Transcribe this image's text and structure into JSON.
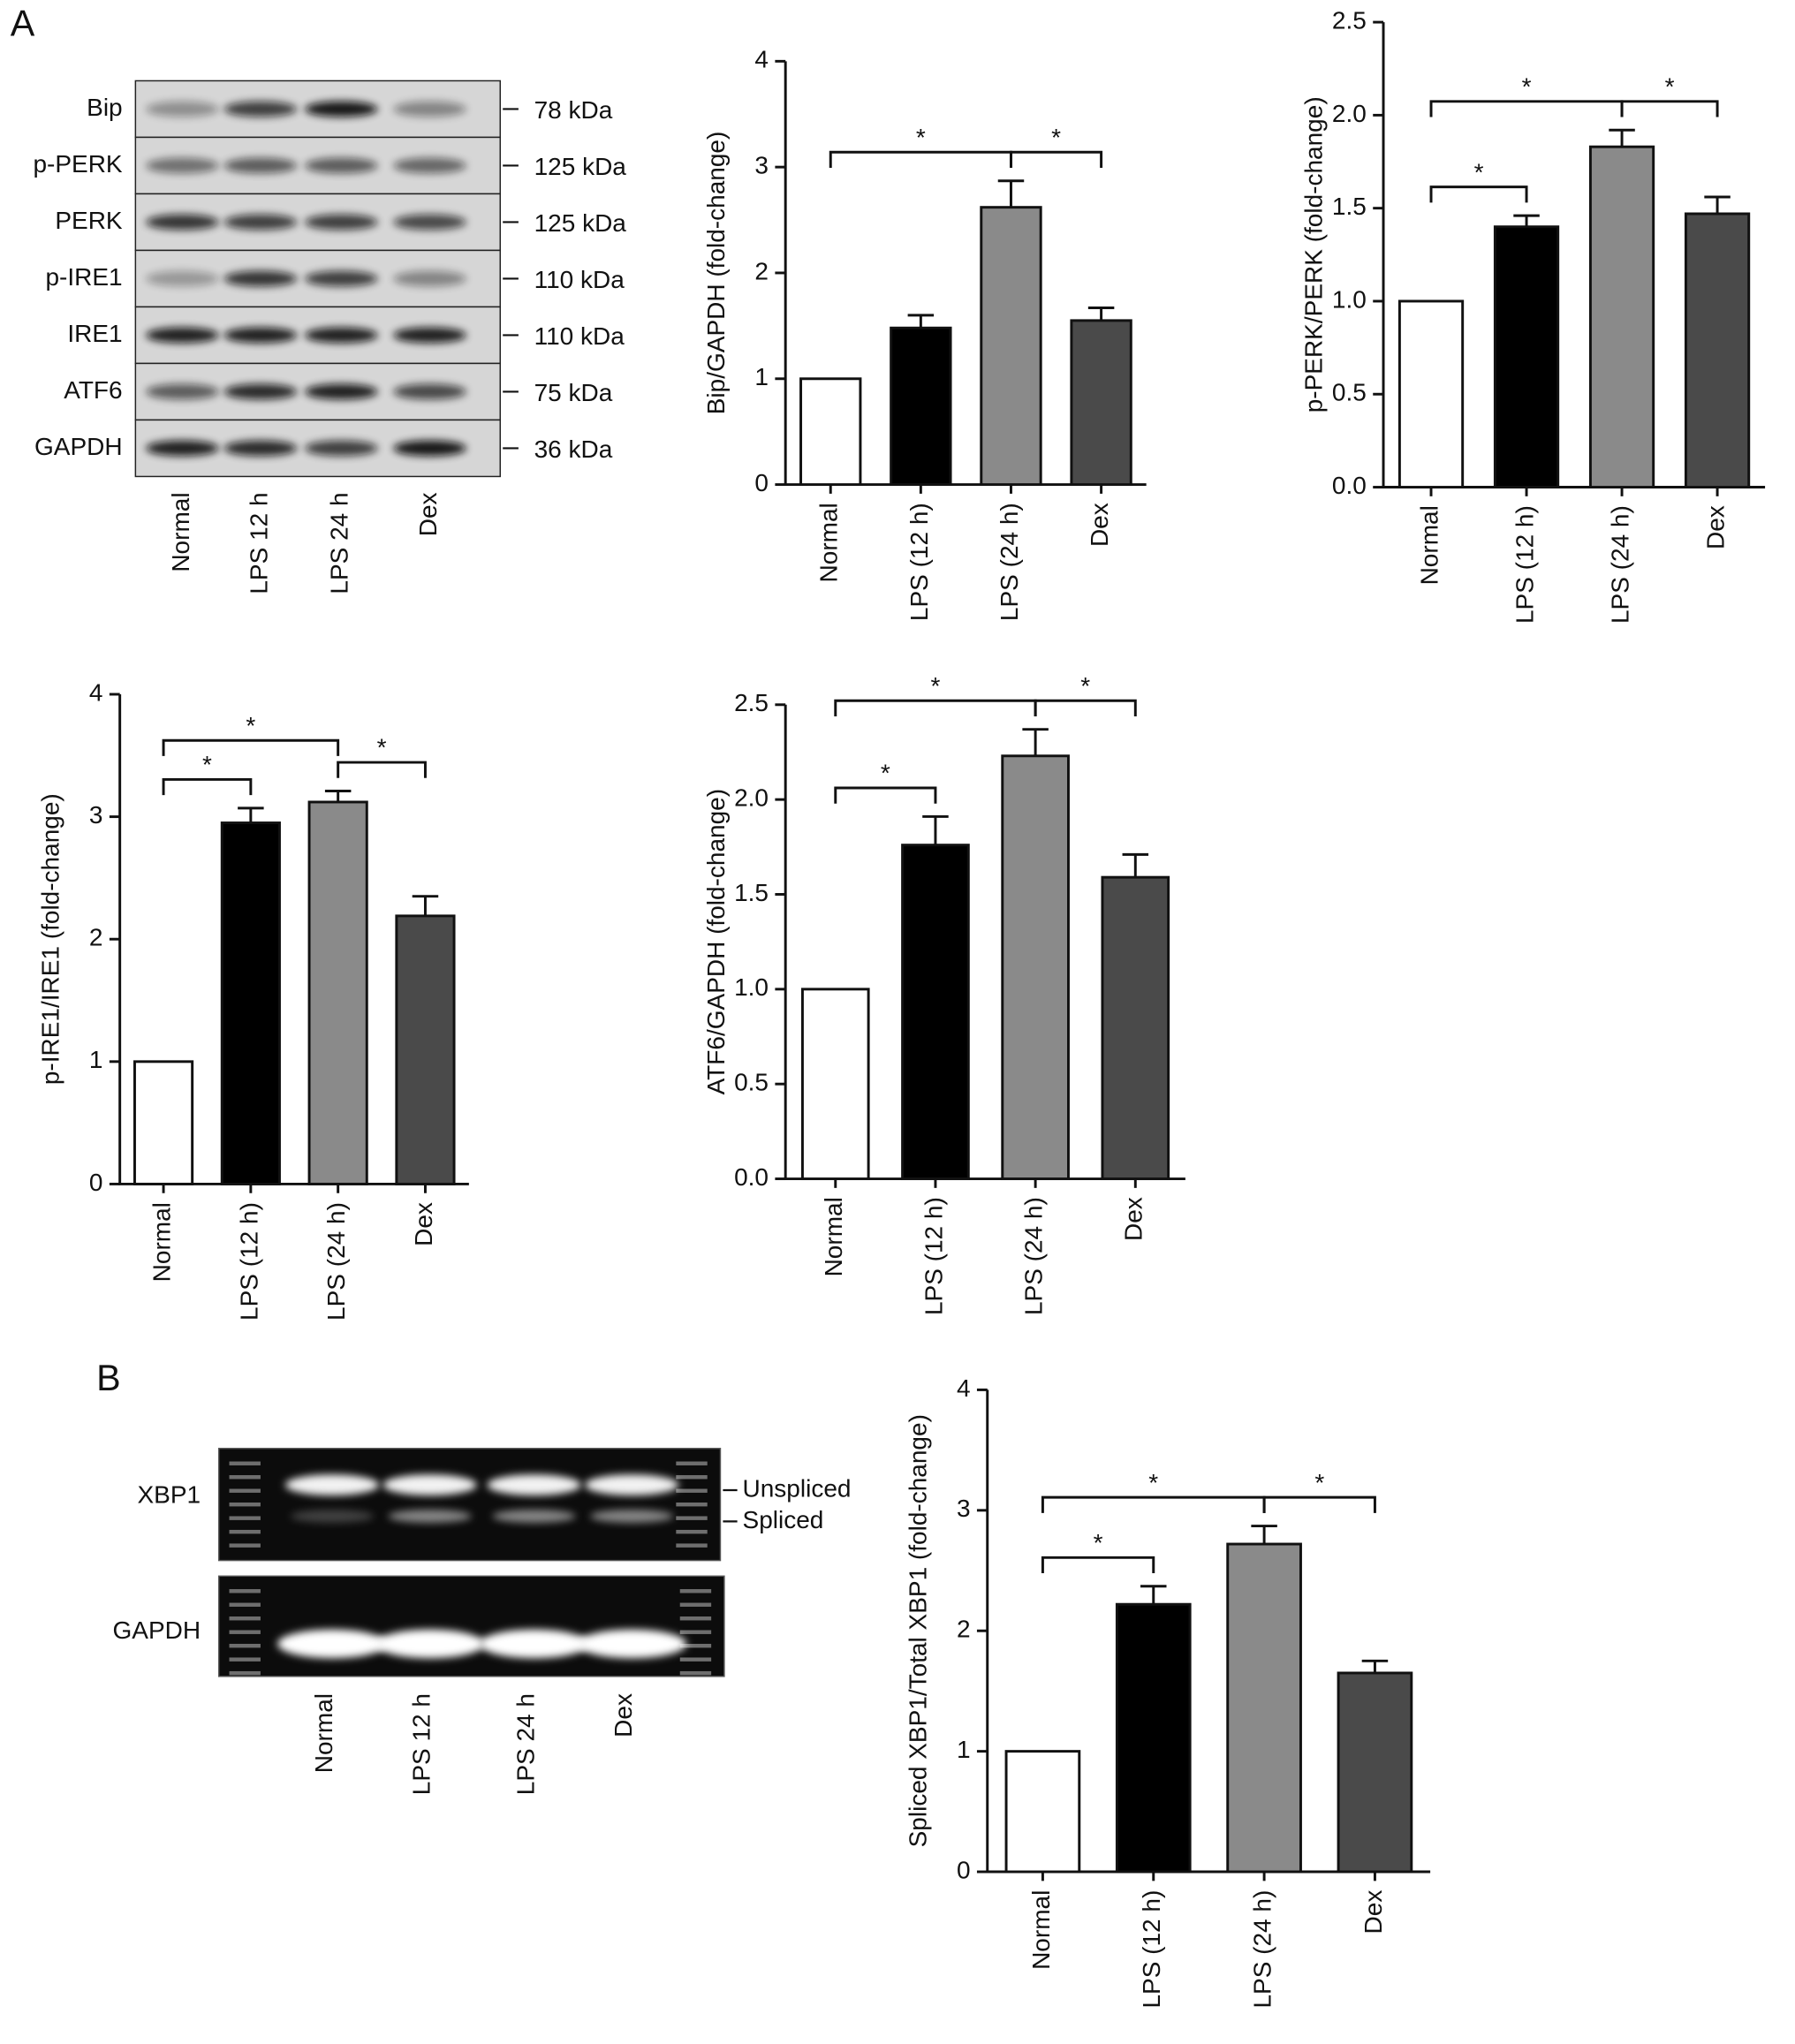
{
  "panel_labels": [
    "A",
    "B"
  ],
  "western_blot": {
    "proteins": [
      "Bip",
      "p-PERK",
      "PERK",
      "p-IRE1",
      "IRE1",
      "ATF6",
      "GAPDH"
    ],
    "sizes": [
      "78 kDa",
      "125 kDa",
      "125 kDa",
      "110 kDa",
      "110 kDa",
      "75 kDa",
      "36 kDa"
    ],
    "lanes": [
      "Normal",
      "LPS 12 h",
      "LPS 24 h",
      "Dex"
    ]
  },
  "rt_pcr": {
    "genes": [
      "XBP1",
      "GAPDH"
    ],
    "band_labels": [
      "Unspliced",
      "Spliced"
    ],
    "lanes": [
      "Normal",
      "LPS 12 h",
      "LPS 24 h",
      "Dex"
    ]
  },
  "chart_data": [
    {
      "type": "bar",
      "y_label": "Bip/GAPDH (fold-change)",
      "categories": [
        "Normal",
        "LPS (12 h)",
        "LPS (24 h)",
        "Dex"
      ],
      "values": [
        1.0,
        1.48,
        2.62,
        1.55
      ],
      "errors": [
        0,
        0.12,
        0.25,
        0.12
      ],
      "colors": [
        "#ffffff",
        "#000000",
        "#8a8a8a",
        "#4a4a4a"
      ],
      "ylim": [
        0,
        4
      ],
      "yticks": [
        0,
        1,
        2,
        3,
        4
      ],
      "annotations": [
        {
          "text": "*",
          "between": [
            "Normal",
            "LPS (24 h)"
          ]
        },
        {
          "text": "*",
          "between": [
            "LPS (24 h)",
            "Dex"
          ]
        }
      ]
    },
    {
      "type": "bar",
      "y_label": "p-PERK/PERK (fold-change)",
      "categories": [
        "Normal",
        "LPS (12 h)",
        "LPS (24 h)",
        "Dex"
      ],
      "values": [
        1.0,
        1.4,
        1.83,
        1.47
      ],
      "errors": [
        0,
        0.06,
        0.09,
        0.09
      ],
      "colors": [
        "#ffffff",
        "#000000",
        "#8a8a8a",
        "#4a4a4a"
      ],
      "ylim": [
        0,
        2.5
      ],
      "yticks": [
        {
          "value": 0,
          "label": "0.0"
        },
        0.5,
        {
          "value": 1,
          "label": "1.0"
        },
        1.5,
        {
          "value": 2,
          "label": "2.0"
        },
        2.5
      ],
      "annotations": [
        {
          "text": "*",
          "between": [
            "Normal",
            "LPS (12 h)"
          ]
        },
        {
          "text": "*",
          "between": [
            "Normal",
            "LPS (24 h)"
          ]
        },
        {
          "text": "*",
          "between": [
            "LPS (24 h)",
            "Dex"
          ]
        }
      ]
    },
    {
      "type": "bar",
      "y_label": "p-IRE1/IRE1 (fold-change)",
      "categories": [
        "Normal",
        "LPS (12 h)",
        "LPS (24 h)",
        "Dex"
      ],
      "values": [
        1.0,
        2.95,
        3.12,
        2.19
      ],
      "errors": [
        0,
        0.12,
        0.09,
        0.16
      ],
      "colors": [
        "#ffffff",
        "#000000",
        "#8a8a8a",
        "#4a4a4a"
      ],
      "ylim": [
        0,
        4
      ],
      "yticks": [
        0,
        1,
        2,
        3,
        4
      ],
      "annotations": [
        {
          "text": "*",
          "between": [
            "Normal",
            "LPS (12 h)"
          ]
        },
        {
          "text": "*",
          "between": [
            "Normal",
            "LPS (24 h)"
          ]
        },
        {
          "text": "*",
          "between": [
            "LPS (24 h)",
            "Dex"
          ]
        }
      ]
    },
    {
      "type": "bar",
      "y_label": "ATF6/GAPDH (fold-change)",
      "categories": [
        "Normal",
        "LPS (12 h)",
        "LPS (24 h)",
        "Dex"
      ],
      "values": [
        1.0,
        1.76,
        2.23,
        1.59
      ],
      "errors": [
        0,
        0.15,
        0.14,
        0.12
      ],
      "colors": [
        "#ffffff",
        "#000000",
        "#8a8a8a",
        "#4a4a4a"
      ],
      "ylim": [
        0,
        2.5
      ],
      "yticks": [
        {
          "value": 0,
          "label": "0.0"
        },
        0.5,
        {
          "value": 1,
          "label": "1.0"
        },
        1.5,
        {
          "value": 2,
          "label": "2.0"
        },
        2.5
      ],
      "annotations": [
        {
          "text": "*",
          "between": [
            "Normal",
            "LPS (12 h)"
          ]
        },
        {
          "text": "*",
          "between": [
            "Normal",
            "LPS (24 h)"
          ]
        },
        {
          "text": "*",
          "between": [
            "LPS (24 h)",
            "Dex"
          ]
        }
      ]
    },
    {
      "type": "bar",
      "y_label": "Spliced XBP1/Total XBP1 (fold-change)",
      "categories": [
        "Normal",
        "LPS (12 h)",
        "LPS (24 h)",
        "Dex"
      ],
      "values": [
        1.0,
        2.22,
        2.72,
        1.65
      ],
      "errors": [
        0,
        0.15,
        0.15,
        0.1
      ],
      "colors": [
        "#ffffff",
        "#000000",
        "#8a8a8a",
        "#4a4a4a"
      ],
      "ylim": [
        0,
        4
      ],
      "yticks": [
        0,
        1,
        2,
        3,
        4
      ],
      "annotations": [
        {
          "text": "*",
          "between": [
            "Normal",
            "LPS (12 h)"
          ]
        },
        {
          "text": "*",
          "between": [
            "Normal",
            "LPS (24 h)"
          ]
        },
        {
          "text": "*",
          "between": [
            "LPS (24 h)",
            "Dex"
          ]
        }
      ]
    }
  ]
}
